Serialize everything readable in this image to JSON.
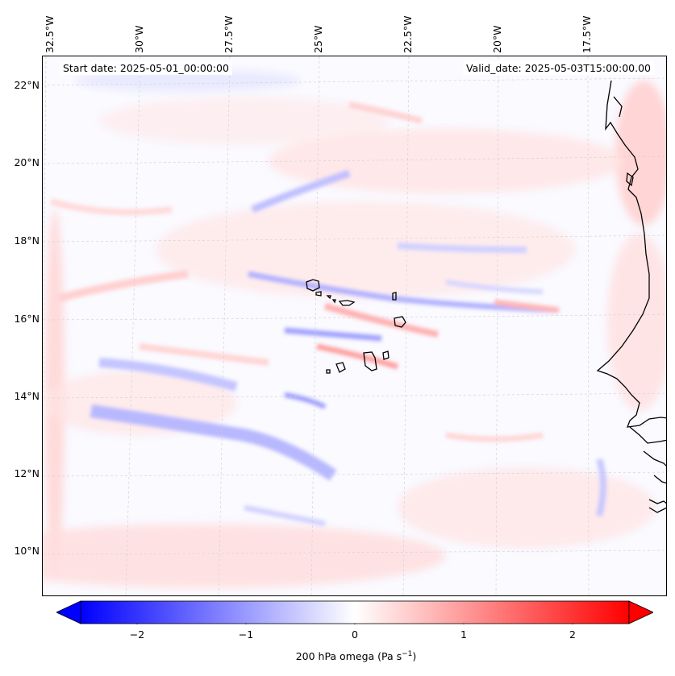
{
  "annotations": {
    "start_date": "Start date: 2025-05-01_00:00:00",
    "valid_date": "Valid_date: 2025-05-03T15:00:00.00"
  },
  "map": {
    "lat_labels": [
      "22°N",
      "20°N",
      "18°N",
      "16°N",
      "14°N",
      "12°N",
      "10°N"
    ],
    "lon_labels": [
      "32.5°W",
      "30°W",
      "27.5°W",
      "25°W",
      "22.5°W",
      "20°W",
      "17.5°W"
    ],
    "field": "200 hPa vertical velocity (omega)",
    "positive_color": "#ff0000",
    "negative_color": "#0000ff",
    "neutral_color": "#ffffff"
  },
  "colorbar": {
    "ticks": [
      "−2",
      "−1",
      "0",
      "1",
      "2"
    ],
    "label_main": "200 hPa omega (Pa s",
    "label_exp": "−1",
    "label_end": ")",
    "range": [
      -2.6,
      2.6
    ],
    "extend": "both"
  }
}
